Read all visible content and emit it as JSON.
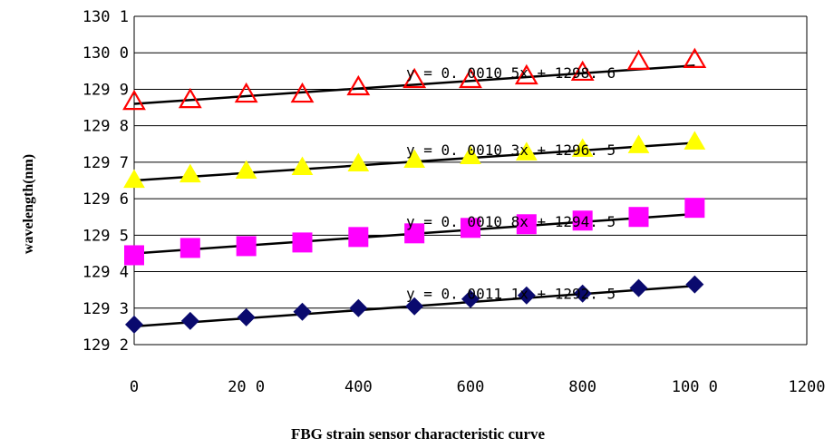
{
  "chart_data": {
    "type": "scatter",
    "title": "",
    "xlabel": "FBG strain sensor characteristic curve",
    "ylabel": "wavelength(nm)",
    "xlim": [
      0,
      1200
    ],
    "ylim": [
      1292,
      1301
    ],
    "x_ticks": [
      "0",
      "20 0",
      "400",
      "600",
      "800",
      "100 0",
      "1200"
    ],
    "y_ticks": [
      "129 2",
      "129 3",
      "129 4",
      "129 5",
      "129 6",
      "129 7",
      "129 8",
      "129 9",
      "130 0",
      "130 1"
    ],
    "grid": "horizontal",
    "x": [
      0,
      100,
      200,
      300,
      400,
      500,
      600,
      700,
      800,
      900,
      1000
    ],
    "series": [
      {
        "marker": "triangle",
        "color": "#ff0000",
        "fill": "none",
        "values": [
          1298.65,
          1298.7,
          1298.85,
          1298.85,
          1299.05,
          1299.25,
          1299.25,
          1299.35,
          1299.45,
          1299.75,
          1299.8
        ],
        "trendline": {
          "slope": 0.00105,
          "intercept": 1298.6
        },
        "equation": "y = 0. 0010 5x + 1298. 6"
      },
      {
        "marker": "triangle",
        "color": "#ffff00",
        "fill": "#ffff00",
        "values": [
          1296.5,
          1296.65,
          1296.75,
          1296.85,
          1296.95,
          1297.05,
          1297.15,
          1297.25,
          1297.35,
          1297.45,
          1297.55
        ],
        "trendline": {
          "slope": 0.00103,
          "intercept": 1296.5
        },
        "equation": "y = 0. 0010 3x + 1296. 5"
      },
      {
        "marker": "square",
        "color": "#ff00ff",
        "fill": "#ff00ff",
        "values": [
          1294.45,
          1294.65,
          1294.7,
          1294.8,
          1294.95,
          1295.05,
          1295.2,
          1295.3,
          1295.4,
          1295.5,
          1295.75
        ],
        "trendline": {
          "slope": 0.00108,
          "intercept": 1294.5
        },
        "equation": "y = 0. 0010 8x + 1294. 5"
      },
      {
        "marker": "diamond",
        "color": "#0a0a6e",
        "fill": "#0a0a6e",
        "values": [
          1292.55,
          1292.65,
          1292.75,
          1292.9,
          1293.0,
          1293.05,
          1293.25,
          1293.35,
          1293.4,
          1293.55,
          1293.65
        ],
        "trendline": {
          "slope": 0.00111,
          "intercept": 1292.5
        },
        "equation": "y = 0. 0011 1x + 1292. 5"
      }
    ]
  }
}
